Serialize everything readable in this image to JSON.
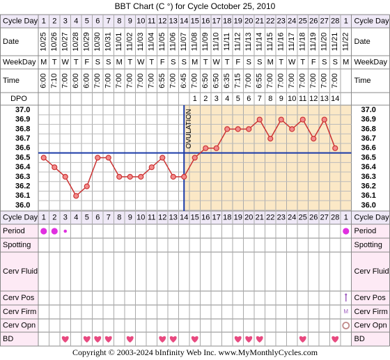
{
  "header": {
    "title": "BBT Chart (C °) for Cycle October 25, 2010",
    "footer": "Copyright © 2003-2024 bInfinity Web Inc.    www.MyMonthlyCycles.com"
  },
  "row_labels": {
    "cycle_day": "Cycle Day",
    "date": "Date",
    "weekday": "WeekDay",
    "time": "Time",
    "dpo": "DPO",
    "period": "Period",
    "spotting": "Spotting",
    "cerv_fluid": "Cerv Fluid",
    "cerv_pos": "Cerv Pos",
    "cerv_firm": "Cerv Firm",
    "cerv_opn": "Cerv Opn",
    "bd": "BD"
  },
  "chart_data": {
    "type": "line",
    "categories": [
      1,
      2,
      3,
      4,
      5,
      6,
      7,
      8,
      9,
      10,
      11,
      12,
      13,
      14,
      15,
      16,
      17,
      18,
      19,
      20,
      21,
      22,
      23,
      24,
      25,
      26,
      27,
      28,
      1
    ],
    "dates": [
      "10/25",
      "10/26",
      "10/27",
      "10/28",
      "10/29",
      "10/30",
      "10/31",
      "11/01",
      "11/02",
      "11/03",
      "11/04",
      "11/05",
      "11/06",
      "11/07",
      "11/08",
      "11/09",
      "11/10",
      "11/11",
      "11/12",
      "11/13",
      "11/14",
      "11/15",
      "11/16",
      "11/17",
      "11/18",
      "11/19",
      "11/20",
      "11/21",
      "11/22"
    ],
    "weekdays": [
      "M",
      "T",
      "W",
      "T",
      "F",
      "S",
      "S",
      "M",
      "T",
      "W",
      "T",
      "F",
      "S",
      "S",
      "M",
      "T",
      "W",
      "T",
      "F",
      "S",
      "S",
      "M",
      "T",
      "W",
      "T",
      "F",
      "S",
      "S",
      "M"
    ],
    "times": [
      "6:00",
      "7:10",
      "7:00",
      "6:00",
      "6:00",
      "7:00",
      "7:00",
      "7:00",
      "7:00",
      "7:00",
      "7:00",
      "6:55",
      "7:00",
      "6:45",
      "7:00",
      "6:50",
      "6:50",
      "6:35",
      "7:15",
      "7:00",
      "6:55",
      "7:00",
      "7:00",
      "7:00",
      "7:00",
      "7:00",
      "7:00",
      "7:00",
      null
    ],
    "dpo": [
      null,
      null,
      null,
      null,
      null,
      null,
      null,
      null,
      null,
      null,
      null,
      null,
      null,
      null,
      1,
      2,
      3,
      4,
      5,
      6,
      7,
      8,
      9,
      10,
      11,
      12,
      13,
      14,
      null
    ],
    "values": [
      36.5,
      36.4,
      36.3,
      36.1,
      36.2,
      36.5,
      36.5,
      36.3,
      36.3,
      36.3,
      36.4,
      36.5,
      36.3,
      36.3,
      36.5,
      36.6,
      36.6,
      36.8,
      36.8,
      36.8,
      36.9,
      36.7,
      36.9,
      36.8,
      36.9,
      36.7,
      36.9,
      36.6,
      null
    ],
    "color": "#cc3333",
    "ylim": [
      36.0,
      37.0
    ],
    "yticks": [
      {
        "value": 37.0,
        "label": "37.0"
      },
      36.9,
      36.8,
      36.7,
      36.6,
      36.5,
      36.4,
      36.3,
      36.2,
      36.1,
      {
        "value": 36.0,
        "label": "36.0"
      }
    ],
    "grid": true,
    "coverline": 36.55,
    "ovulation_label": "OVULATION",
    "period": [
      2,
      2,
      1,
      null,
      null,
      null,
      null,
      null,
      null,
      null,
      null,
      null,
      null,
      null,
      null,
      null,
      null,
      null,
      null,
      null,
      null,
      null,
      null,
      null,
      null,
      null,
      null,
      null,
      2
    ],
    "cerv_pos": [
      false,
      false,
      false,
      false,
      false,
      false,
      false,
      false,
      false,
      false,
      false,
      false,
      false,
      false,
      false,
      false,
      false,
      false,
      false,
      false,
      false,
      false,
      false,
      false,
      false,
      false,
      false,
      false,
      true
    ],
    "cerv_firm": [
      null,
      null,
      null,
      null,
      null,
      null,
      null,
      null,
      null,
      null,
      null,
      null,
      null,
      null,
      null,
      null,
      null,
      null,
      null,
      null,
      null,
      null,
      null,
      null,
      null,
      null,
      null,
      null,
      "M"
    ],
    "cerv_opn": [
      false,
      false,
      false,
      false,
      false,
      false,
      false,
      false,
      false,
      false,
      false,
      false,
      false,
      false,
      false,
      false,
      false,
      false,
      false,
      false,
      false,
      false,
      false,
      false,
      false,
      false,
      false,
      false,
      true
    ],
    "bd": [
      false,
      false,
      true,
      false,
      true,
      true,
      true,
      false,
      true,
      false,
      false,
      true,
      true,
      false,
      true,
      false,
      false,
      false,
      true,
      true,
      true,
      false,
      false,
      false,
      true,
      false,
      false,
      true,
      false
    ]
  }
}
